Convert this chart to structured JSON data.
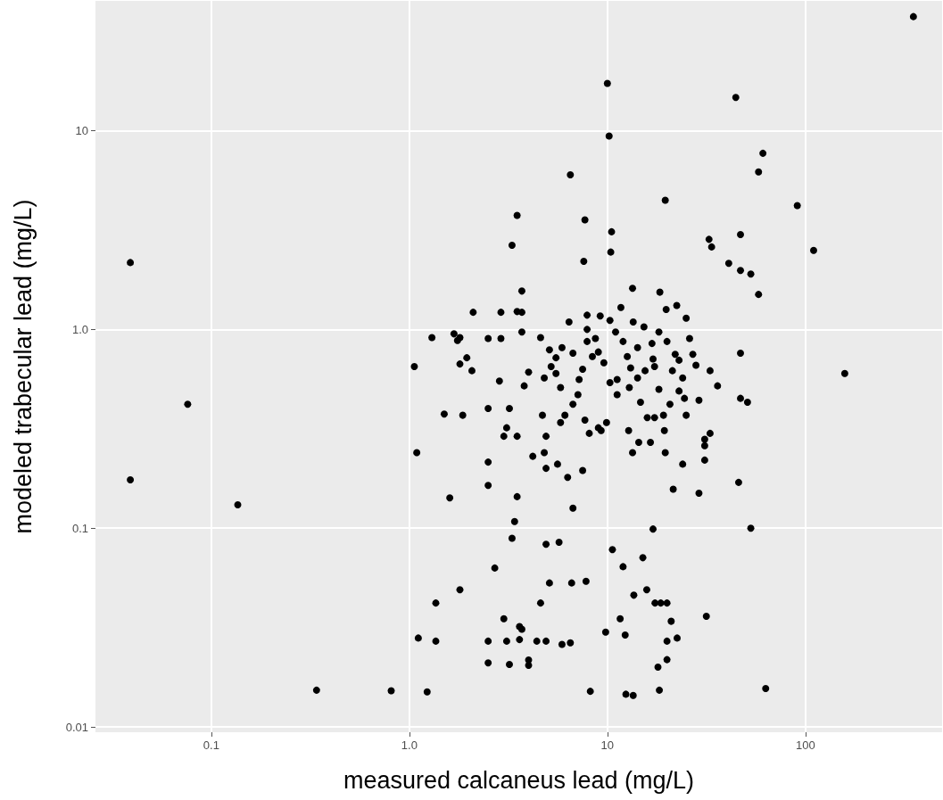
{
  "chart_data": {
    "type": "scatter",
    "xlabel": "measured calcaneus lead (mg/L)",
    "ylabel": "modeled trabecular lead (mg/L)",
    "log": "xy",
    "grid": true,
    "marker": "circle",
    "xlim": [
      0.026,
      490
    ],
    "ylim": [
      0.0094,
      45
    ],
    "xticks": [
      {
        "value": 0.1,
        "label": "0.1"
      },
      {
        "value": 1,
        "label": "1.0"
      },
      {
        "value": 10,
        "label": "10"
      },
      {
        "value": 100,
        "label": "100"
      }
    ],
    "yticks": [
      {
        "value": 0.01,
        "label": "0.01"
      },
      {
        "value": 0.1,
        "label": "0.1"
      },
      {
        "value": 1,
        "label": "1.0"
      },
      {
        "value": 10,
        "label": "10"
      }
    ],
    "series": [
      {
        "color": "#000000",
        "x": [
          351,
          0.039,
          0.076,
          0.039,
          0.136,
          0.34,
          0.81,
          1.23,
          1.11,
          1.06,
          1.09,
          10,
          10.2,
          6.5,
          44.5,
          61,
          58,
          91,
          110,
          63,
          158,
          53,
          19.6,
          3.5,
          10.5,
          10.4,
          7.7,
          7.6,
          3.3,
          47,
          32.6,
          33.6,
          47,
          53,
          58,
          41,
          47,
          47,
          51,
          3.7,
          3.7,
          2.9,
          2.1,
          1.8,
          2.5,
          1.86,
          2.5,
          3.2,
          2.5,
          4.2,
          3.0,
          3.5,
          4.9,
          3.1,
          4.7,
          4.8,
          5.2,
          6.4,
          6.7,
          5.9,
          5.5,
          5.5,
          5.8,
          7.2,
          7.9,
          7.9,
          7.9,
          9.2,
          10.3,
          11,
          12,
          12.6,
          10.3,
          11.2,
          9.9,
          9.3,
          12.8,
          14.7,
          15.9,
          18.2,
          17.3,
          18.2,
          19.8,
          22.4,
          26,
          28,
          36,
          24,
          31,
          21.5,
          19.6,
          19.4,
          19.2,
          15.5,
          15.3,
          13.5,
          13.4,
          18.4,
          25,
          27,
          33,
          33,
          31,
          31,
          29,
          46,
          29,
          25,
          24,
          24.5,
          21.3,
          22,
          20,
          16.8,
          14.2,
          13.1,
          14.2,
          12.9,
          11.2,
          9.6,
          9.0,
          8.4,
          7.5,
          7.1,
          6.1,
          5.8,
          5.6,
          6.3,
          7.5,
          8.1,
          9.0,
          13.4,
          14.4,
          16.5,
          17.3,
          20.7,
          23,
          23,
          17,
          11.7,
          8.7,
          7.7,
          6.7,
          4.9,
          4.8,
          6.7,
          3.8,
          4.0,
          5.1,
          4.6,
          3.7,
          3.5,
          2.9,
          2.85,
          2.07,
          1.68,
          1.5,
          1.6,
          2.5,
          3.5,
          1.3,
          1.75,
          1.95,
          1.8,
          3.4,
          17,
          3.3,
          2.7,
          1.8,
          1.36,
          1.36,
          2.5,
          2.5,
          3.1,
          5.7,
          6.6,
          7.8,
          5.1,
          4.6,
          10.6,
          12,
          15.1,
          15.8,
          18.6,
          20,
          17.4,
          21,
          31.6,
          11.6,
          9.8,
          12.3,
          22.5,
          20,
          20,
          18.3,
          13.5,
          12.4,
          8.2,
          3.0,
          3.2,
          3.6,
          3.7,
          3.6,
          4.0,
          4.0,
          4.4,
          4.9,
          5.9,
          6.5,
          13.6,
          18,
          4.9
        ],
        "values": [
          37.5,
          2.17,
          0.42,
          0.175,
          0.131,
          0.0153,
          0.0152,
          0.015,
          0.028,
          0.65,
          0.24,
          17.3,
          9.4,
          6.0,
          14.7,
          7.7,
          6.2,
          4.2,
          2.5,
          0.0156,
          0.6,
          0.1,
          4.47,
          3.75,
          3.1,
          2.45,
          3.56,
          2.2,
          2.65,
          3.0,
          2.84,
          2.6,
          1.98,
          1.9,
          1.5,
          2.15,
          0.76,
          0.45,
          0.43,
          1.56,
          1.22,
          1.22,
          1.22,
          0.91,
          0.9,
          0.37,
          0.4,
          0.4,
          0.215,
          0.23,
          0.29,
          0.29,
          0.29,
          0.32,
          0.37,
          0.57,
          0.65,
          1.09,
          0.76,
          0.81,
          0.72,
          0.6,
          0.51,
          0.56,
          0.87,
          1.18,
          1.0,
          1.17,
          1.11,
          0.97,
          0.87,
          0.73,
          0.54,
          0.47,
          0.34,
          0.31,
          0.31,
          0.43,
          0.36,
          0.5,
          0.65,
          0.97,
          1.26,
          1.32,
          0.9,
          0.66,
          0.52,
          0.21,
          0.26,
          0.157,
          0.24,
          0.31,
          0.37,
          0.62,
          1.03,
          1.09,
          1.61,
          1.54,
          1.14,
          0.75,
          0.62,
          0.3,
          0.28,
          0.22,
          0.15,
          0.17,
          0.44,
          0.37,
          0.57,
          0.45,
          0.62,
          0.75,
          0.87,
          0.85,
          0.81,
          0.64,
          0.57,
          0.51,
          0.56,
          0.68,
          0.77,
          0.73,
          0.63,
          0.47,
          0.37,
          0.34,
          0.21,
          0.18,
          0.195,
          0.3,
          0.32,
          0.24,
          0.27,
          0.27,
          0.36,
          0.42,
          0.49,
          0.7,
          0.71,
          1.29,
          0.9,
          0.35,
          0.42,
          0.2,
          0.24,
          0.126,
          0.52,
          0.61,
          0.79,
          0.91,
          0.97,
          1.23,
          0.9,
          0.55,
          0.62,
          0.95,
          0.375,
          0.142,
          0.164,
          0.144,
          0.91,
          0.88,
          0.72,
          0.67,
          0.108,
          0.099,
          0.089,
          0.063,
          0.049,
          0.042,
          0.027,
          0.021,
          0.027,
          0.027,
          0.085,
          0.053,
          0.054,
          0.053,
          0.042,
          0.078,
          0.064,
          0.071,
          0.049,
          0.042,
          0.042,
          0.042,
          0.034,
          0.036,
          0.035,
          0.03,
          0.029,
          0.028,
          0.027,
          0.0218,
          0.0153,
          0.0144,
          0.0146,
          0.0151,
          0.035,
          0.0206,
          0.032,
          0.031,
          0.0275,
          0.0217,
          0.0204,
          0.027,
          0.027,
          0.026,
          0.0265,
          0.046,
          0.02,
          0.083
        ]
      }
    ]
  }
}
